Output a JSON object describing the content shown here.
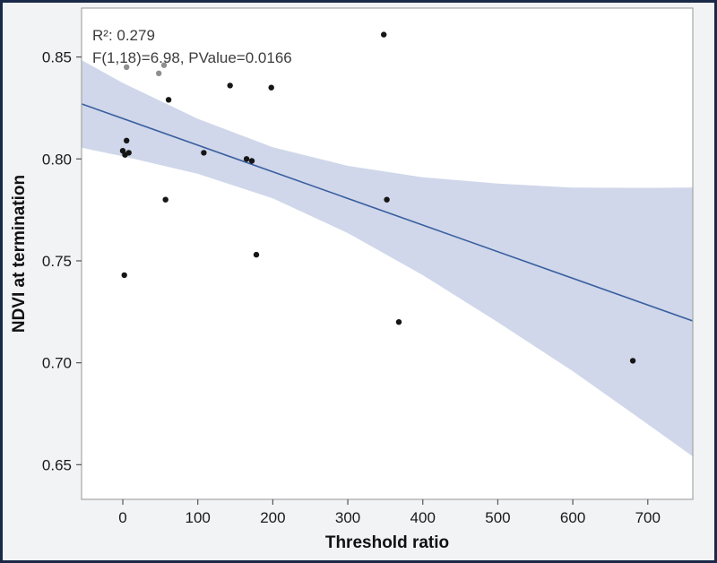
{
  "figure": {
    "border_color": "#1a2948",
    "background_color": "#f2f3f5",
    "plot_background_color": "#ffffff",
    "frame_color": "#a6a6a6",
    "line_color": "#3a5fa0",
    "band_color": "#cdd5e9",
    "point_color": "#161616",
    "gray_point_color": "#8f8f8f"
  },
  "annotation": {
    "line1": "R²: 0.279",
    "line2": "F(1,18)=6.98, PValue=0.0166"
  },
  "chart_data": {
    "type": "scatter",
    "title": "",
    "xlabel": "Threshold ratio",
    "ylabel": "NDVI at termination",
    "xlim": [
      -55,
      760
    ],
    "ylim": [
      0.633,
      0.874
    ],
    "grid": false,
    "legend": "none",
    "xticks": [
      0,
      100,
      200,
      300,
      400,
      500,
      600,
      700
    ],
    "xtick_labels": [
      "0",
      "100",
      "200",
      "300",
      "400",
      "500",
      "600",
      "700"
    ],
    "yticks": [
      0.65,
      0.7,
      0.75,
      0.8,
      0.85
    ],
    "ytick_labels": [
      "0.65",
      "0.70",
      "0.75",
      "0.80",
      "0.85"
    ],
    "r_squared": 0.279,
    "f_statistic": "F(1,18)=6.98",
    "p_value": 0.0166,
    "points": [
      {
        "x": 0,
        "y": 0.804
      },
      {
        "x": 3,
        "y": 0.802
      },
      {
        "x": 5,
        "y": 0.809
      },
      {
        "x": 8,
        "y": 0.803
      },
      {
        "x": 2,
        "y": 0.743
      },
      {
        "x": 57,
        "y": 0.78
      },
      {
        "x": 61,
        "y": 0.829
      },
      {
        "x": 108,
        "y": 0.803
      },
      {
        "x": 143,
        "y": 0.836
      },
      {
        "x": 165,
        "y": 0.8
      },
      {
        "x": 172,
        "y": 0.799
      },
      {
        "x": 178,
        "y": 0.753
      },
      {
        "x": 198,
        "y": 0.835
      },
      {
        "x": 348,
        "y": 0.861
      },
      {
        "x": 352,
        "y": 0.78
      },
      {
        "x": 368,
        "y": 0.72
      },
      {
        "x": 680,
        "y": 0.701
      }
    ],
    "gray_points": [
      {
        "x": 5,
        "y": 0.845
      },
      {
        "x": 48,
        "y": 0.842
      },
      {
        "x": 55,
        "y": 0.846
      }
    ],
    "regression_line": {
      "x1": -55,
      "y1": 0.827,
      "x2": 760,
      "y2": 0.7205
    },
    "confidence_band": [
      {
        "x": -55,
        "lo": 0.8055,
        "hi": 0.8485
      },
      {
        "x": 0,
        "lo": 0.8013,
        "hi": 0.8373
      },
      {
        "x": 100,
        "lo": 0.7927,
        "hi": 0.8197
      },
      {
        "x": 200,
        "lo": 0.7807,
        "hi": 0.8057
      },
      {
        "x": 300,
        "lo": 0.7636,
        "hi": 0.7966
      },
      {
        "x": 400,
        "lo": 0.743,
        "hi": 0.791
      },
      {
        "x": 500,
        "lo": 0.7199,
        "hi": 0.7879
      },
      {
        "x": 600,
        "lo": 0.6959,
        "hi": 0.7859
      },
      {
        "x": 700,
        "lo": 0.6698,
        "hi": 0.7858
      },
      {
        "x": 760,
        "lo": 0.654,
        "hi": 0.786
      }
    ]
  }
}
